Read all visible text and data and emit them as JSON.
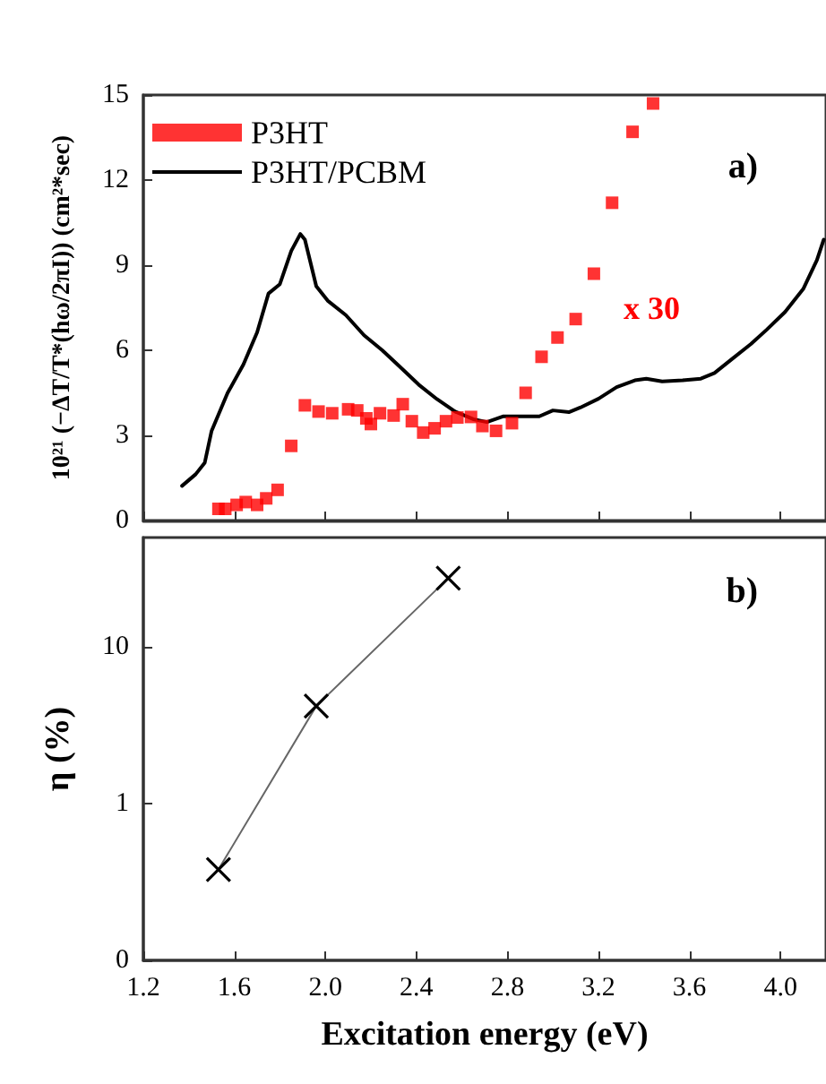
{
  "chart_data": [
    {
      "type": "line",
      "ylabel": "10²¹ (−ΔT/T*(hω/2πI)) (cm²*sec)",
      "xlim": [
        1.2,
        4.2
      ],
      "xticks": [
        1.2,
        1.6,
        2.0,
        2.4,
        2.8,
        3.2,
        3.6,
        4.0
      ],
      "ylim": [
        0,
        15
      ],
      "yticks": [
        0,
        3,
        6,
        9,
        12,
        15
      ],
      "tick_labels": "y",
      "grid": false,
      "legend": "top left",
      "annotations": [
        "a)",
        "x 30"
      ],
      "series": [
        {
          "name": "P3HT",
          "type": "scatter",
          "marker": "square",
          "color": "#ff0000",
          "x": [
            1.53,
            1.56,
            1.61,
            1.65,
            1.7,
            1.74,
            1.79,
            1.85,
            1.91,
            1.97,
            2.03,
            2.1,
            2.14,
            2.18,
            2.2,
            2.24,
            2.3,
            2.34,
            2.38,
            2.43,
            2.48,
            2.53,
            2.58,
            2.64,
            2.69,
            2.75,
            2.82,
            2.88,
            2.95,
            3.02,
            3.1,
            3.18,
            3.26,
            3.35,
            3.44
          ],
          "values": [
            0.41,
            0.41,
            0.55,
            0.65,
            0.55,
            0.78,
            1.08,
            2.63,
            4.06,
            3.84,
            3.78,
            3.92,
            3.88,
            3.6,
            3.4,
            3.78,
            3.7,
            4.1,
            3.5,
            3.1,
            3.25,
            3.5,
            3.63,
            3.65,
            3.33,
            3.16,
            3.43,
            4.5,
            5.77,
            6.45,
            7.1,
            8.7,
            11.2,
            13.7,
            14.7
          ]
        },
        {
          "name": "P3HT/PCBM",
          "marker": "none",
          "line_style": "solid",
          "color": "#000000",
          "x": [
            1.37,
            1.43,
            1.47,
            1.5,
            1.57,
            1.64,
            1.7,
            1.75,
            1.8,
            1.85,
            1.89,
            1.91,
            1.96,
            2.01,
            2.09,
            2.17,
            2.25,
            2.33,
            2.41,
            2.49,
            2.57,
            2.65,
            2.71,
            2.78,
            2.86,
            2.94,
            3.0,
            3.07,
            3.12,
            3.2,
            3.28,
            3.36,
            3.41,
            3.48,
            3.57,
            3.65,
            3.71,
            3.79,
            3.87,
            3.94,
            4.02,
            4.1,
            4.16,
            4.19
          ],
          "values": [
            1.22,
            1.63,
            2.04,
            3.16,
            4.49,
            5.5,
            6.63,
            8.0,
            8.33,
            9.5,
            10.1,
            9.9,
            8.26,
            7.75,
            7.24,
            6.53,
            6.0,
            5.4,
            4.79,
            4.28,
            3.84,
            3.57,
            3.47,
            3.67,
            3.67,
            3.67,
            3.88,
            3.82,
            3.98,
            4.29,
            4.7,
            4.94,
            5.0,
            4.9,
            4.94,
            5.0,
            5.2,
            5.71,
            6.22,
            6.73,
            7.35,
            8.16,
            9.18,
            9.9
          ]
        }
      ]
    },
    {
      "type": "line",
      "xlabel": "Excitation energy (eV)",
      "ylabel": "η (%)",
      "xlim": [
        1.2,
        4.2
      ],
      "xticks": [
        1.2,
        1.6,
        {
          "value": 2,
          "label": "2.0"
        },
        2.4,
        2.8,
        3.2,
        3.6,
        {
          "value": 4,
          "label": "4.0"
        }
      ],
      "ylim": [
        0.1,
        50
      ],
      "yticks": [
        {
          "value": 0.1,
          "label": "0"
        },
        1,
        10
      ],
      "log": "y",
      "grid": false,
      "legend": false,
      "marker": "cross",
      "line_style": "solid",
      "annotations": [
        "b)"
      ],
      "series": [
        {
          "color": "#000000",
          "x": [
            1.53,
            1.96,
            2.54
          ],
          "values": [
            0.38,
            4.2,
            27.5
          ]
        }
      ]
    }
  ]
}
